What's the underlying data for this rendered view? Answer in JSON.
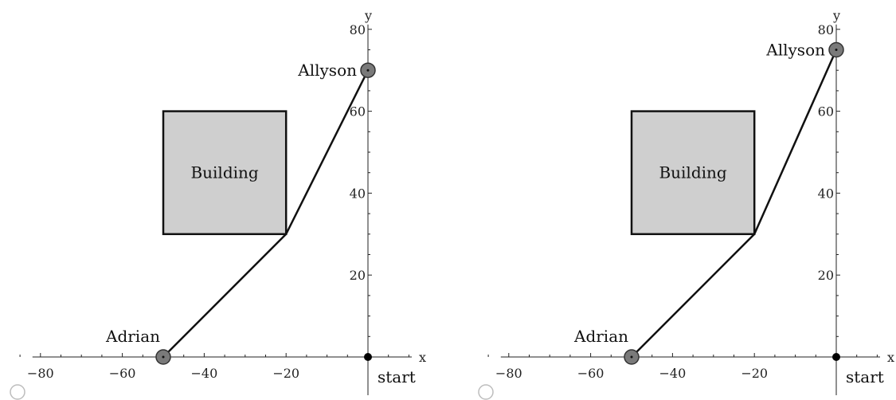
{
  "diagrams": [
    {
      "axes": {
        "x_label": "x",
        "y_label": "y",
        "x_tick_labels": [
          {
            "value": -80,
            "label": "−80"
          },
          {
            "value": -60,
            "label": "−60"
          },
          {
            "value": -40,
            "label": "−40"
          },
          {
            "value": -20,
            "label": "−20"
          }
        ],
        "y_tick_labels": [
          {
            "value": 20,
            "label": "20"
          },
          {
            "value": 40,
            "label": "40"
          },
          {
            "value": 60,
            "label": "60"
          },
          {
            "value": 80,
            "label": "80"
          }
        ]
      },
      "building": {
        "label": "Building",
        "x_min": -50,
        "x_max": -20,
        "y_min": 30,
        "y_max": 60
      },
      "adrian": {
        "label": "Adrian",
        "x": -50,
        "y": 0
      },
      "corner": {
        "x": -20,
        "y": 30
      },
      "allyson": {
        "label": "Allyson",
        "x": 0,
        "y": 70
      },
      "start": {
        "label": "start",
        "x": 0,
        "y": 0
      }
    },
    {
      "axes": {
        "x_label": "x",
        "y_label": "y",
        "x_tick_labels": [
          {
            "value": -80,
            "label": "−80"
          },
          {
            "value": -60,
            "label": "−60"
          },
          {
            "value": -40,
            "label": "−40"
          },
          {
            "value": -20,
            "label": "−20"
          }
        ],
        "y_tick_labels": [
          {
            "value": 20,
            "label": "20"
          },
          {
            "value": 40,
            "label": "40"
          },
          {
            "value": 60,
            "label": "60"
          },
          {
            "value": 80,
            "label": "80"
          }
        ]
      },
      "building": {
        "label": "Building",
        "x_min": -50,
        "x_max": -20,
        "y_min": 30,
        "y_max": 60
      },
      "adrian": {
        "label": "Adrian",
        "x": -50,
        "y": 0
      },
      "corner": {
        "x": -20,
        "y": 30
      },
      "allyson": {
        "label": "Allyson",
        "x": 0,
        "y": 75
      },
      "start": {
        "label": "start",
        "x": 0,
        "y": 0
      }
    }
  ],
  "colors": {
    "building_fill": "#cfcfcf",
    "point_fill": "#7a7a7a",
    "line": "#111111",
    "start_dot": "#000000",
    "radio_stroke": "#bdbdbd"
  }
}
